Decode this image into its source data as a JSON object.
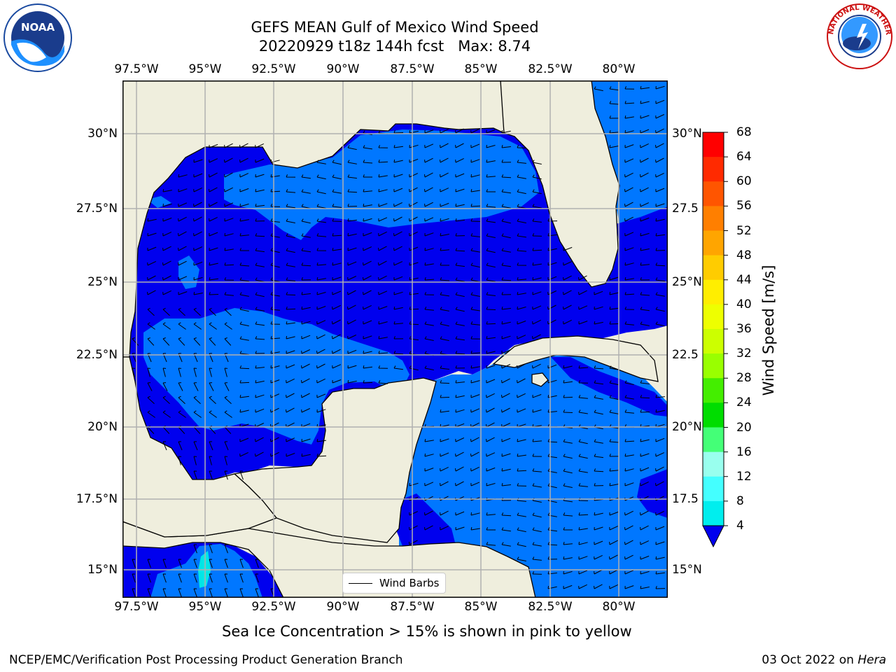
{
  "header": {
    "title_line1": "GEFS MEAN Gulf of Mexico Wind Speed",
    "title_line2": "20220929 t18z 144h fcst   Max: 8.74"
  },
  "logos": {
    "left": {
      "name": "noaa-logo",
      "text": "NOAA",
      "ring_text": "NATIONAL OCEANIC AND ATMOSPHERIC ADMINISTRATION · U.S. DEPARTMENT OF COMMERCE"
    },
    "right": {
      "name": "nws-logo",
      "ring_text": "NATIONAL WEATHER SERVICE"
    }
  },
  "axes": {
    "lon_ticks": [
      "97.5°W",
      "95°W",
      "92.5°W",
      "90°W",
      "87.5°W",
      "85°W",
      "82.5°W",
      "80°W"
    ],
    "lat_ticks_left": [
      "30°N",
      "27.5°N",
      "25°N",
      "22.5°N",
      "20°N",
      "17.5°N",
      "15°N"
    ],
    "lat_ticks_right": [
      "30°N",
      "27.5",
      "25°N",
      "22.5",
      "20°N",
      "17.5",
      "15°N"
    ]
  },
  "colorbar": {
    "label": "Wind Speed [m/s]",
    "ticks": [
      "68",
      "64",
      "60",
      "56",
      "52",
      "48",
      "44",
      "40",
      "36",
      "32",
      "28",
      "24",
      "20",
      "16",
      "12",
      "8",
      "4"
    ],
    "colors": [
      "#ff0000",
      "#ff2a00",
      "#ff5500",
      "#ff7f00",
      "#ffa500",
      "#ffcc00",
      "#ffee00",
      "#eeff00",
      "#ccff00",
      "#99ff00",
      "#44ee00",
      "#00dd00",
      "#44ff77",
      "#99ffee",
      "#44ffff",
      "#00eeee",
      "#0077ff"
    ],
    "extend_color": "#0000ee"
  },
  "map": {
    "land_color": "#efeedd",
    "ocean_low_color": "#0000ee",
    "ocean_mid_color": "#0077ff",
    "ocean_high_color": "#00e6e6",
    "grid_color": "#b0b0b0"
  },
  "legend": {
    "label": "Wind Barbs"
  },
  "footer": {
    "caption": "Sea Ice Concentration > 15% is shown in pink to yellow",
    "credit": "NCEP/EMC/Verification Post Processing Product Generation Branch",
    "date_prefix": "03 Oct 2022 on ",
    "machine": "Hera"
  }
}
